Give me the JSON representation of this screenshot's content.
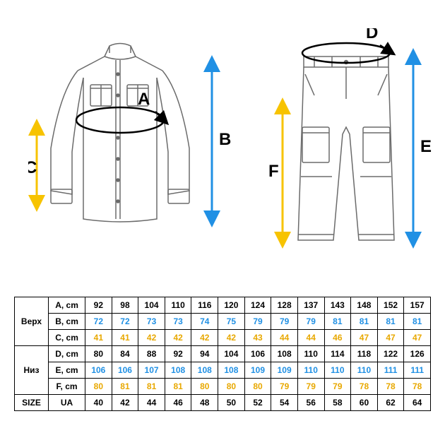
{
  "colors": {
    "shirt_outline": "#6b6b6b",
    "pants_outline": "#6b6b6b",
    "dim_blue": "#2090e4",
    "dim_yellow": "#f7c300",
    "dim_black": "#000000",
    "table_border": "#000000",
    "background": "#ffffff"
  },
  "letters": {
    "A": "A",
    "B": "B",
    "C": "C",
    "D": "D",
    "E": "E",
    "F": "F"
  },
  "table": {
    "group_top": "Верх",
    "group_bottom": "Низ",
    "size_label": "SIZE",
    "size_unit": "UA",
    "rows": [
      {
        "label": "A, cm",
        "cls": "val-a",
        "values": [
          "92",
          "98",
          "104",
          "110",
          "116",
          "120",
          "124",
          "128",
          "137",
          "143",
          "148",
          "152",
          "157"
        ]
      },
      {
        "label": "B, cm",
        "cls": "val-b",
        "values": [
          "72",
          "72",
          "73",
          "73",
          "74",
          "75",
          "79",
          "79",
          "79",
          "81",
          "81",
          "81",
          "81"
        ]
      },
      {
        "label": "C, cm",
        "cls": "val-c",
        "values": [
          "41",
          "41",
          "42",
          "42",
          "42",
          "42",
          "43",
          "44",
          "44",
          "46",
          "47",
          "47",
          "47"
        ]
      },
      {
        "label": "D, cm",
        "cls": "val-d",
        "values": [
          "80",
          "84",
          "88",
          "92",
          "94",
          "104",
          "106",
          "108",
          "110",
          "114",
          "118",
          "122",
          "126"
        ]
      },
      {
        "label": "E, cm",
        "cls": "val-e",
        "values": [
          "106",
          "106",
          "107",
          "108",
          "108",
          "108",
          "109",
          "109",
          "110",
          "110",
          "110",
          "111",
          "111"
        ]
      },
      {
        "label": "F, cm",
        "cls": "val-f",
        "values": [
          "80",
          "81",
          "81",
          "81",
          "80",
          "80",
          "80",
          "79",
          "79",
          "79",
          "78",
          "78",
          "78"
        ]
      }
    ],
    "sizes": [
      "40",
      "42",
      "44",
      "46",
      "48",
      "50",
      "52",
      "54",
      "56",
      "58",
      "60",
      "62",
      "64"
    ]
  }
}
